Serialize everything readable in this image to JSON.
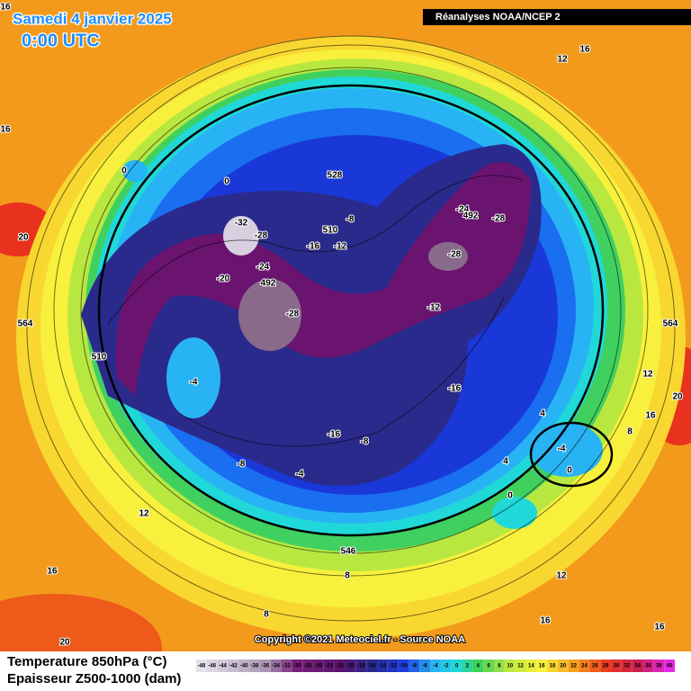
{
  "header": {
    "date": "Samedi 4 janvier 2025",
    "time": "0:00 UTC",
    "source_badge": "Réanalyses NOAA/NCEP 2"
  },
  "map": {
    "labels": [
      16,
      12,
      16,
      16,
      20,
      0,
      0,
      -32,
      -28,
      -24,
      -20,
      492,
      -28,
      510,
      -8,
      -16,
      -12,
      528,
      -24,
      492,
      -28,
      -28,
      -12,
      -16,
      564,
      510,
      -4,
      -16,
      -8,
      -8,
      -4,
      4,
      -4,
      0,
      4,
      0,
      564,
      12,
      16,
      20,
      8,
      12,
      16,
      546,
      8,
      12,
      16,
      16,
      8,
      20
    ]
  },
  "footer": {
    "copyright": "Copyright ©2021 Meteociel.fr - Source NOAA",
    "legend_title_temp": "Temperature 850hPa (°C)",
    "legend_title_thickness": "Epaisseur Z500-1000 (dam)",
    "scale": [
      -48,
      -46,
      -44,
      -42,
      -40,
      -38,
      -36,
      -34,
      -32,
      -30,
      -28,
      -26,
      -24,
      -22,
      -20,
      -18,
      -16,
      -14,
      -12,
      -10,
      -8,
      -6,
      -4,
      -2,
      0,
      2,
      4,
      6,
      8,
      10,
      12,
      14,
      16,
      18,
      20,
      22,
      24,
      26,
      28,
      30,
      32,
      34,
      36,
      38,
      40
    ]
  }
}
